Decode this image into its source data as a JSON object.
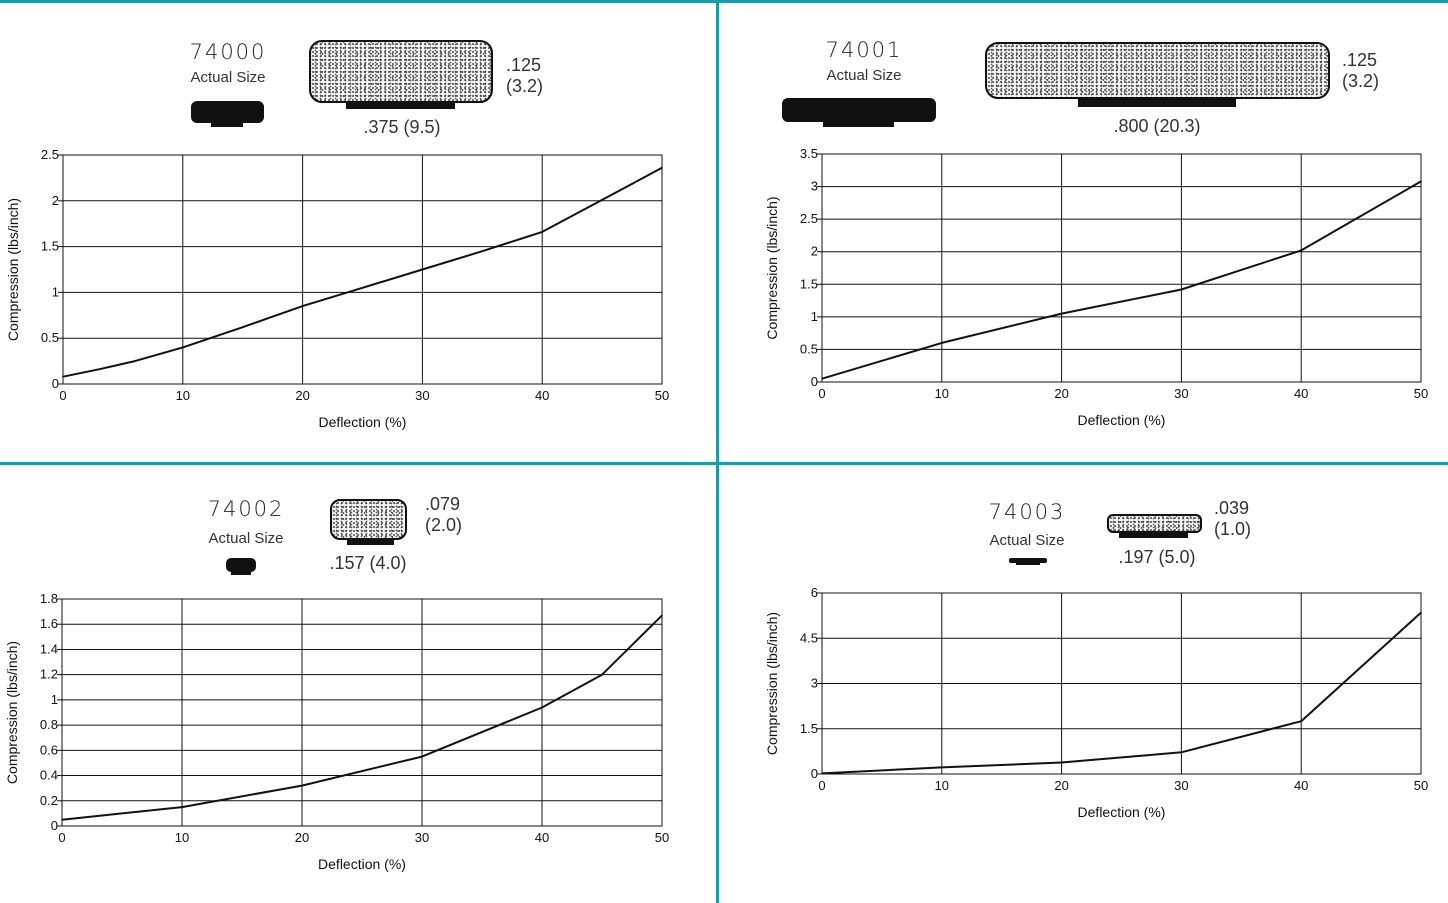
{
  "colors": {
    "divider": "#1f9aa6",
    "line": "#111111",
    "grid": "#111111"
  },
  "panels": [
    {
      "part_number": "74000",
      "actual_size_label": "Actual Size",
      "thickness": ".125",
      "thickness_mm": "(3.2)",
      "width": ".375 (9.5)",
      "chart_data": {
        "type": "line",
        "xlabel": "Deflection (%)",
        "ylabel": "Compression (lbs/inch)",
        "xlim": [
          0,
          50
        ],
        "ylim": [
          0,
          2.5
        ],
        "xticks": [
          0,
          10,
          20,
          30,
          40,
          50
        ],
        "yticks": [
          0,
          0.5,
          1,
          1.5,
          2,
          2.5
        ],
        "ytick_labels": [
          "0",
          "0.5",
          "1",
          "1.5",
          "2",
          "2.5"
        ],
        "grid": true,
        "x": [
          0,
          3,
          6,
          10,
          15,
          20,
          25,
          30,
          35,
          40,
          45,
          50
        ],
        "y": [
          0.08,
          0.16,
          0.25,
          0.4,
          0.62,
          0.85,
          1.05,
          1.25,
          1.45,
          1.66,
          2.01,
          2.36
        ]
      }
    },
    {
      "part_number": "74001",
      "actual_size_label": "Actual Size",
      "thickness": ".125",
      "thickness_mm": "(3.2)",
      "width": ".800 (20.3)",
      "chart_data": {
        "type": "line",
        "xlabel": "Deflection (%)",
        "ylabel": "Compression (lbs/inch)",
        "xlim": [
          0,
          50
        ],
        "ylim": [
          0,
          3.5
        ],
        "xticks": [
          0,
          10,
          20,
          30,
          40,
          50
        ],
        "yticks": [
          0,
          0.5,
          1,
          1.5,
          2,
          2.5,
          3,
          3.5
        ],
        "ytick_labels": [
          "0",
          "0.5",
          "1",
          "1.5",
          "2",
          "2.5",
          "3",
          "3.5"
        ],
        "grid": true,
        "x": [
          0,
          10,
          20,
          30,
          40,
          50
        ],
        "y": [
          0.05,
          0.6,
          1.05,
          1.42,
          2.02,
          3.08
        ]
      }
    },
    {
      "part_number": "74002",
      "actual_size_label": "Actual Size",
      "thickness": ".079",
      "thickness_mm": "(2.0)",
      "width": ".157 (4.0)",
      "chart_data": {
        "type": "line",
        "xlabel": "Deflection (%)",
        "ylabel": "Compression (lbs/inch)",
        "xlim": [
          0,
          50
        ],
        "ylim": [
          0,
          1.8
        ],
        "xticks": [
          0,
          10,
          20,
          30,
          40,
          50
        ],
        "yticks": [
          0,
          0.2,
          0.4,
          0.6,
          0.8,
          1,
          1.2,
          1.4,
          1.6,
          1.8
        ],
        "ytick_labels": [
          "0",
          "0.2",
          "0.4",
          "0.6",
          "0.8",
          "1",
          "1.2",
          "1.4",
          "1.6",
          "1.8"
        ],
        "grid": true,
        "x": [
          0,
          10,
          20,
          30,
          40,
          45,
          50
        ],
        "y": [
          0.05,
          0.15,
          0.32,
          0.55,
          0.94,
          1.2,
          1.67
        ]
      }
    },
    {
      "part_number": "74003",
      "actual_size_label": "Actual Size",
      "thickness": ".039",
      "thickness_mm": "(1.0)",
      "width": ".197 (5.0)",
      "chart_data": {
        "type": "line",
        "xlabel": "Deflection (%)",
        "ylabel": "Compression (lbs/inch)",
        "xlim": [
          0,
          50
        ],
        "ylim": [
          0,
          6
        ],
        "xticks": [
          0,
          10,
          20,
          30,
          40,
          50
        ],
        "yticks": [
          0,
          1.5,
          3,
          4.5,
          6
        ],
        "ytick_labels": [
          "0",
          "1.5",
          "3",
          "4.5",
          "6"
        ],
        "grid": true,
        "x": [
          0,
          10,
          20,
          30,
          40,
          50
        ],
        "y": [
          0.02,
          0.22,
          0.38,
          0.72,
          1.75,
          5.35
        ]
      }
    }
  ]
}
